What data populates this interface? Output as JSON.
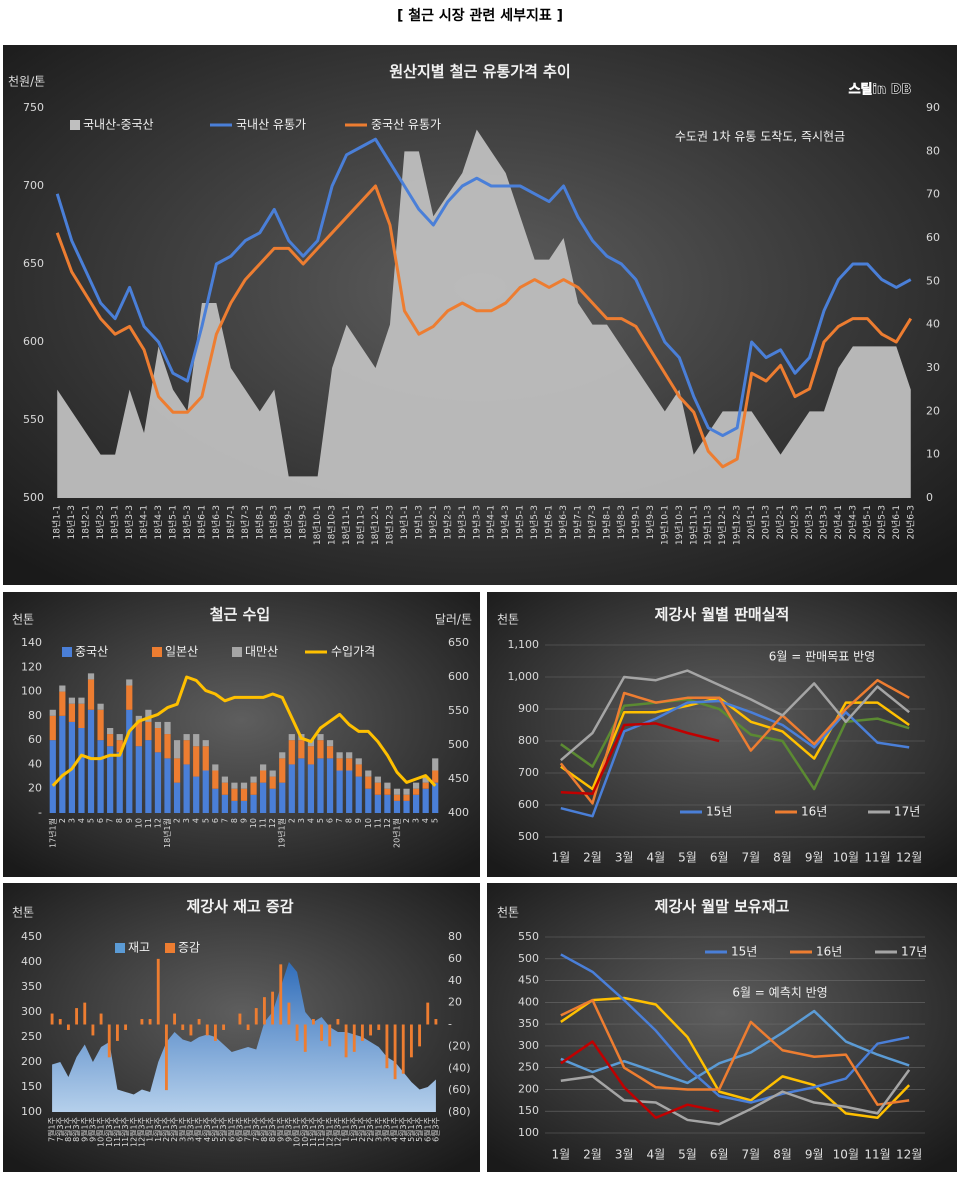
{
  "title": "[ 철근 시장 관련 세부지표 ]",
  "chart_data": [
    {
      "type": "combo",
      "title": "원산지별 철근 유통가격 추이",
      "ylabel": "천원/톤",
      "source": "스틸in DB",
      "note": "수도권 1차 유통 도착도, 즉시현금",
      "categories": [
        "18년1-1",
        "18년1-3",
        "18년2-1",
        "18년2-3",
        "18년3-1",
        "18년3-3",
        "18년4-1",
        "18년4-3",
        "18년5-1",
        "18년5-3",
        "18년6-1",
        "18년6-3",
        "18년7-1",
        "18년7-3",
        "18년8-1",
        "18년8-3",
        "18년9-1",
        "18년9-3",
        "18년10-1",
        "18년10-3",
        "18년11-1",
        "18년11-3",
        "18년12-1",
        "18년12-3",
        "19년1-1",
        "19년1-3",
        "19년2-1",
        "19년2-3",
        "19년3-1",
        "19년3-3",
        "19년4-1",
        "19년4-3",
        "19년5-1",
        "19년5-3",
        "19년6-1",
        "19년6-3",
        "19년7-1",
        "19년7-3",
        "19년8-1",
        "19년8-3",
        "19년9-1",
        "19년9-3",
        "19년10-1",
        "19년10-3",
        "19년11-1",
        "19년11-3",
        "19년12-1",
        "19년12-3",
        "20년1-1",
        "20년1-3",
        "20년2-1",
        "20년2-3",
        "20년3-1",
        "20년3-3",
        "20년4-1",
        "20년4-3",
        "20년5-1",
        "20년5-3",
        "20년6-1",
        "20년6-3"
      ],
      "series": [
        {
          "name": "국내산-중국산",
          "type": "area",
          "axis": "y2",
          "color": "#bfbfbf",
          "values": [
            25,
            20,
            15,
            10,
            10,
            25,
            15,
            35,
            25,
            20,
            45,
            45,
            30,
            25,
            20,
            25,
            5,
            5,
            5,
            30,
            40,
            35,
            30,
            40,
            80,
            80,
            65,
            70,
            75,
            85,
            80,
            75,
            65,
            55,
            55,
            60,
            45,
            40,
            40,
            35,
            30,
            25,
            20,
            25,
            10,
            15,
            20,
            20,
            20,
            15,
            10,
            15,
            20,
            20,
            30,
            35,
            35,
            35,
            35,
            25
          ]
        },
        {
          "name": "국내산 유통가",
          "type": "line",
          "color": "#4a7fd8",
          "values": [
            695,
            665,
            645,
            625,
            615,
            635,
            610,
            600,
            580,
            575,
            610,
            650,
            655,
            665,
            670,
            685,
            665,
            655,
            665,
            700,
            720,
            725,
            730,
            715,
            700,
            685,
            675,
            690,
            700,
            705,
            700,
            700,
            700,
            695,
            690,
            700,
            680,
            665,
            655,
            650,
            640,
            620,
            600,
            590,
            565,
            545,
            540,
            545,
            600,
            590,
            595,
            580,
            590,
            620,
            640,
            650,
            650,
            640,
            635,
            640
          ]
        },
        {
          "name": "중국산 유통가",
          "type": "line",
          "color": "#ed7d31",
          "values": [
            670,
            645,
            630,
            615,
            605,
            610,
            595,
            565,
            555,
            555,
            565,
            605,
            625,
            640,
            650,
            660,
            660,
            650,
            660,
            670,
            680,
            690,
            700,
            675,
            620,
            605,
            610,
            620,
            625,
            620,
            620,
            625,
            635,
            640,
            635,
            640,
            635,
            625,
            615,
            615,
            610,
            595,
            580,
            565,
            555,
            530,
            520,
            525,
            580,
            575,
            585,
            565,
            570,
            600,
            610,
            615,
            615,
            605,
            600,
            615
          ]
        }
      ],
      "ylim": [
        500,
        750
      ],
      "yticks": [
        500,
        550,
        600,
        650,
        700,
        750
      ],
      "y2lim": [
        0,
        90
      ],
      "y2ticks": [
        0,
        10,
        20,
        30,
        40,
        50,
        60,
        70,
        80,
        90
      ],
      "grid": false
    },
    {
      "type": "combo",
      "title": "철근 수입",
      "ylabel": "천톤",
      "y2label": "달러/톤",
      "categories": [
        "17년1월",
        "2",
        "3",
        "4",
        "5",
        "6",
        "7",
        "8",
        "9",
        "10",
        "11",
        "12",
        "18년1월",
        "2",
        "3",
        "4",
        "5",
        "6",
        "7",
        "8",
        "9",
        "10",
        "11",
        "12",
        "19년1월",
        "2",
        "3",
        "4",
        "5",
        "6",
        "7",
        "8",
        "9",
        "10",
        "11",
        "12",
        "20년1월",
        "2",
        "3",
        "4",
        "5"
      ],
      "stacked": true,
      "series": [
        {
          "name": "중국산",
          "type": "bar",
          "color": "#4a7fd8",
          "values": [
            60,
            80,
            75,
            70,
            85,
            60,
            55,
            50,
            85,
            55,
            60,
            50,
            45,
            25,
            40,
            30,
            35,
            20,
            15,
            10,
            10,
            15,
            25,
            20,
            25,
            40,
            45,
            40,
            45,
            45,
            35,
            35,
            30,
            20,
            15,
            15,
            10,
            10,
            15,
            20,
            25
          ]
        },
        {
          "name": "일본산",
          "type": "bar",
          "color": "#ed7d31",
          "values": [
            20,
            20,
            15,
            20,
            25,
            25,
            10,
            10,
            20,
            20,
            15,
            20,
            20,
            20,
            20,
            25,
            20,
            15,
            10,
            10,
            10,
            10,
            10,
            10,
            20,
            20,
            15,
            15,
            15,
            10,
            10,
            10,
            10,
            10,
            10,
            5,
            5,
            5,
            5,
            5,
            10
          ]
        },
        {
          "name": "대만산",
          "type": "bar",
          "color": "#a5a5a5",
          "values": [
            5,
            5,
            5,
            5,
            5,
            5,
            5,
            5,
            5,
            5,
            10,
            5,
            10,
            15,
            5,
            10,
            5,
            5,
            5,
            5,
            5,
            5,
            5,
            5,
            5,
            5,
            5,
            5,
            5,
            5,
            5,
            5,
            5,
            5,
            5,
            5,
            5,
            5,
            5,
            5,
            10
          ]
        },
        {
          "name": "수입가격",
          "type": "line",
          "axis": "y2",
          "color": "#ffc000",
          "values": [
            440,
            455,
            465,
            485,
            480,
            480,
            485,
            485,
            520,
            535,
            540,
            545,
            555,
            560,
            600,
            595,
            580,
            575,
            565,
            570,
            570,
            570,
            570,
            575,
            570,
            540,
            510,
            505,
            525,
            535,
            545,
            530,
            520,
            520,
            505,
            485,
            460,
            445,
            450,
            455,
            440
          ]
        }
      ],
      "ylim": [
        0,
        140
      ],
      "yticks": [
        {
          "value": 0,
          "label": "-"
        },
        20,
        40,
        60,
        80,
        100,
        120,
        140
      ],
      "y2lim": [
        400,
        650
      ],
      "y2ticks": [
        400,
        450,
        500,
        550,
        600,
        650
      ],
      "grid": false
    },
    {
      "type": "line",
      "title": "제강사 월별 판매실적",
      "ylabel": "천톤",
      "note": "6월 = 판매목표 반영",
      "categories": [
        "1월",
        "2월",
        "3월",
        "4월",
        "5월",
        "6월",
        "7월",
        "8월",
        "9월",
        "10월",
        "11월",
        "12월"
      ],
      "series": [
        {
          "color": "#ffc000",
          "values": [
            720,
            650,
            890,
            890,
            910,
            935,
            860,
            830,
            745,
            920,
            920,
            850
          ]
        },
        {
          "color": "#5b8a32",
          "values": [
            790,
            720,
            910,
            920,
            930,
            900,
            820,
            800,
            650,
            860,
            870,
            840
          ]
        },
        {
          "name": "15년",
          "color": "#4a7fd8",
          "values": [
            590,
            565,
            830,
            870,
            920,
            925,
            890,
            850,
            780,
            890,
            795,
            780
          ]
        },
        {
          "name": "16년",
          "color": "#ed7d31",
          "values": [
            730,
            605,
            950,
            920,
            935,
            935,
            770,
            880,
            790,
            900,
            990,
            935
          ]
        },
        {
          "name": "17년",
          "color": "#a5a5a5",
          "values": [
            740,
            825,
            1000,
            990,
            1020,
            975,
            930,
            880,
            980,
            860,
            970,
            890
          ]
        },
        {
          "color": "#c00000",
          "values": [
            640,
            635,
            850,
            855,
            825,
            800,
            null,
            null,
            null,
            null,
            null,
            null
          ]
        }
      ],
      "ylim": [
        500,
        1100
      ],
      "yticks": [
        500,
        600,
        700,
        800,
        900,
        {
          "value": 1000,
          "label": "1,000"
        },
        {
          "value": 1100,
          "label": "1,100"
        }
      ],
      "grid": true
    },
    {
      "type": "combo",
      "title": "제강사 재고 증감",
      "ylabel": "천톤",
      "categories": [
        "7월1주",
        "7월3주",
        "8월1주",
        "8월3주",
        "9월1주",
        "9월3주",
        "10월1주",
        "10월3주",
        "11월1주",
        "11월3주",
        "12월1주",
        "12월3주",
        "1월1주",
        "1월3주",
        "2월1주",
        "2월3주",
        "3월1주",
        "3월3주",
        "4월1주",
        "4월3주",
        "5월1주",
        "5월3주",
        "6월1주",
        "6월3주",
        "7월1주",
        "7월3주",
        "8월1주",
        "8월3주",
        "9월1주",
        "9월3주",
        "10월1주",
        "10월3주",
        "11월1주",
        "11월3주",
        "12월1주",
        "12월3주",
        "1월1주",
        "1월3주",
        "2월1주",
        "2월3주",
        "3월1주",
        "3월3주",
        "4월1주",
        "4월3주",
        "5월1주",
        "5월3주",
        "6월1주",
        "6월3주"
      ],
      "series": [
        {
          "name": "재고",
          "type": "area",
          "color": "#5b9bd5",
          "values": [
            195,
            200,
            170,
            210,
            235,
            200,
            230,
            240,
            145,
            140,
            135,
            145,
            140,
            200,
            240,
            260,
            245,
            240,
            250,
            255,
            250,
            235,
            220,
            225,
            230,
            225,
            280,
            300,
            350,
            400,
            380,
            300,
            280,
            290,
            270,
            260,
            260,
            255,
            250,
            240,
            230,
            210,
            200,
            180,
            160,
            145,
            150,
            165
          ]
        },
        {
          "name": "증감",
          "type": "bar",
          "axis": "y2",
          "color": "#ed7d31",
          "values": [
            10,
            5,
            -5,
            15,
            20,
            -10,
            10,
            -30,
            -15,
            -5,
            0,
            5,
            5,
            60,
            -60,
            10,
            -5,
            -10,
            5,
            -10,
            -15,
            -5,
            0,
            10,
            -5,
            15,
            25,
            30,
            55,
            20,
            -15,
            -25,
            5,
            -15,
            -20,
            5,
            -30,
            -25,
            -15,
            -10,
            -5,
            -40,
            -50,
            -45,
            -30,
            -20,
            20,
            5
          ]
        }
      ],
      "ylim": [
        100,
        450
      ],
      "yticks": [
        100,
        150,
        200,
        250,
        300,
        350,
        400,
        450
      ],
      "y2lim": [
        -80,
        80
      ],
      "y2ticks": [
        {
          "value": -80,
          "label": "(80)"
        },
        {
          "value": -60,
          "label": "(60)"
        },
        {
          "value": -40,
          "label": "(40)"
        },
        {
          "value": -20,
          "label": "(20)"
        },
        {
          "value": 0,
          "label": "-"
        },
        20,
        40,
        60,
        80
      ],
      "grid": false
    },
    {
      "type": "line",
      "title": "제강사 월말 보유재고",
      "ylabel": "천톤",
      "note": "6월 = 예측치 반영",
      "categories": [
        "1월",
        "2월",
        "3월",
        "4월",
        "5월",
        "6월",
        "7월",
        "8월",
        "9월",
        "10월",
        "11월",
        "12월"
      ],
      "series": [
        {
          "color": "#5b9bd5",
          "values": [
            270,
            240,
            265,
            240,
            215,
            260,
            285,
            330,
            380,
            310,
            280,
            255
          ]
        },
        {
          "color": "#ffc000",
          "values": [
            355,
            405,
            410,
            395,
            320,
            195,
            175,
            230,
            210,
            145,
            135,
            210
          ]
        },
        {
          "name": "15년",
          "color": "#4a7fd8",
          "values": [
            510,
            470,
            405,
            335,
            250,
            185,
            170,
            190,
            205,
            225,
            305,
            320
          ]
        },
        {
          "name": "16년",
          "color": "#ed7d31",
          "values": [
            370,
            405,
            250,
            205,
            200,
            200,
            355,
            290,
            275,
            280,
            165,
            175
          ]
        },
        {
          "name": "17년",
          "color": "#a5a5a5",
          "values": [
            220,
            230,
            175,
            170,
            130,
            120,
            155,
            195,
            170,
            160,
            145,
            245
          ]
        },
        {
          "color": "#c00000",
          "values": [
            260,
            310,
            205,
            135,
            165,
            150,
            null,
            null,
            null,
            null,
            null,
            null
          ]
        }
      ],
      "ylim": [
        100,
        550
      ],
      "yticks": [
        100,
        150,
        200,
        250,
        300,
        350,
        400,
        450,
        500,
        550
      ],
      "grid": true
    }
  ]
}
